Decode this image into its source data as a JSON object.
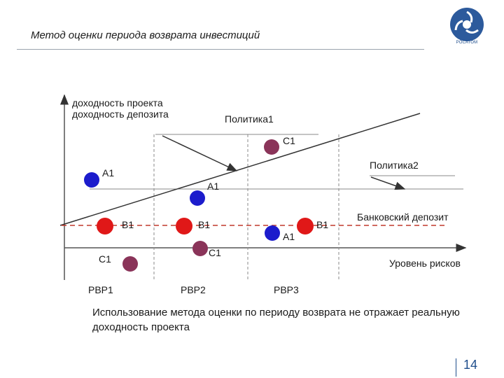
{
  "header": {
    "title": "Метод оценки периода возврата инвестиций",
    "logo_text": "РОСАТОМ"
  },
  "diagram": {
    "y_axis_label_1": "доходность проекта",
    "y_axis_label_2": "доходность депозита",
    "x_axis_label": "Уровень рисков",
    "policy1_label": "Политика1",
    "policy2_label": "Политика2",
    "deposit_label": "Банковский депозит",
    "groups": [
      {
        "label": "РВР1",
        "points": [
          {
            "label": "A1",
            "color": "#1c1ccc"
          },
          {
            "label": "B1",
            "color": "#e01818"
          },
          {
            "label": "C1",
            "color": "#8a3459"
          }
        ]
      },
      {
        "label": "РВР2",
        "points": [
          {
            "label": "A1",
            "color": "#1c1ccc"
          },
          {
            "label": "B1",
            "color": "#e01818"
          },
          {
            "label": "C1",
            "color": "#8a3459"
          }
        ]
      },
      {
        "label": "РВР3",
        "points": [
          {
            "label": "C1",
            "color": "#8a3459"
          },
          {
            "label": "A1",
            "color": "#1c1ccc"
          },
          {
            "label": "B1",
            "color": "#e01818"
          }
        ]
      }
    ]
  },
  "note": "Использование метода оценки по периоду возврата  не отражает реальную доходность проекта",
  "page_number": "14",
  "colors": {
    "accent": "#1f4e8c",
    "deposit_line": "#c0392b",
    "blue_point": "#1c1ccc",
    "red_point": "#e01818",
    "purple_point": "#8a3459"
  }
}
